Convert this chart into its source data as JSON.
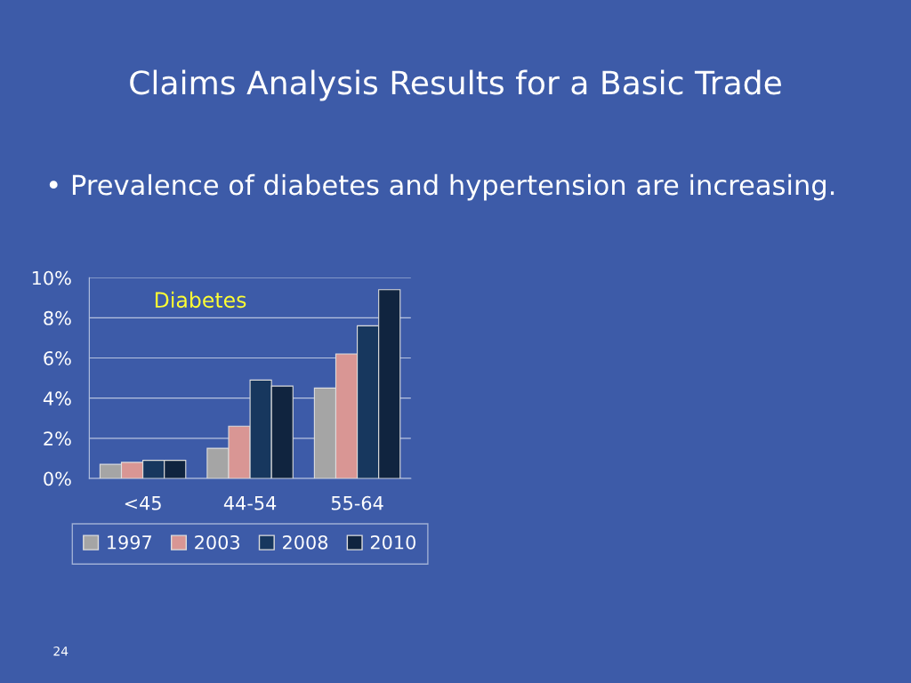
{
  "chart_data": {
    "type": "bar",
    "title": "Claims Analysis Results for a Basic Trade",
    "subtitle": "• Prevalence of diabetes and hypertension are increasing.",
    "categories": [
      "<45",
      "44-54",
      "55-64"
    ],
    "series": [
      {
        "name": "1997",
        "color": "#a5a5a5",
        "values": [
          0.7,
          1.5,
          4.5
        ]
      },
      {
        "name": "2003",
        "color": "#d99694",
        "values": [
          0.8,
          2.6,
          6.2
        ]
      },
      {
        "name": "2008",
        "color": "#17375e",
        "values": [
          0.9,
          4.9,
          7.6
        ]
      },
      {
        "name": "2010",
        "color": "#10243f",
        "values": [
          0.9,
          4.6,
          9.4
        ]
      }
    ],
    "ylim": [
      0,
      10
    ],
    "yticks": [
      {
        "value": 0,
        "label": "0%"
      },
      {
        "value": 2,
        "label": "2%"
      },
      {
        "value": 4,
        "label": "4%"
      },
      {
        "value": 6,
        "label": "6%"
      },
      {
        "value": 8,
        "label": "8%"
      },
      {
        "value": 10,
        "label": "10%"
      }
    ],
    "grid": "y",
    "legend": "bottom",
    "annotations": [
      "Diabetes",
      "24"
    ]
  }
}
